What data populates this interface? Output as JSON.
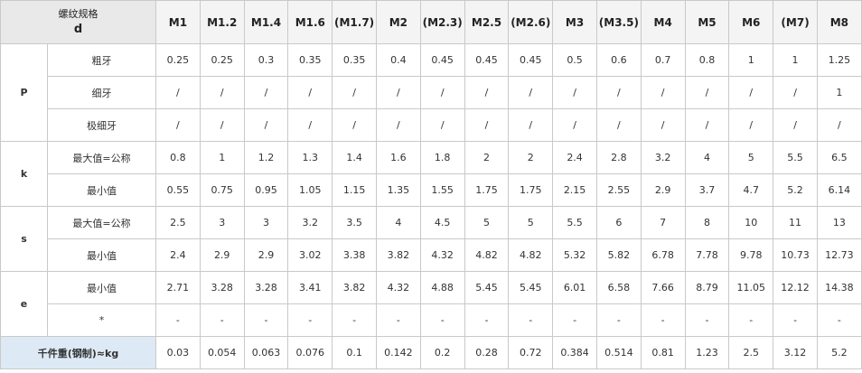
{
  "header": {
    "corner_line1": "螺纹规格",
    "corner_line2": "d",
    "sizes": [
      "M1",
      "M1.2",
      "M1.4",
      "M1.6",
      "(M1.7)",
      "M2",
      "(M2.3)",
      "M2.5",
      "(M2.6)",
      "M3",
      "(M3.5)",
      "M4",
      "M5",
      "M6",
      "(M7)",
      "M8"
    ]
  },
  "groups": {
    "P": {
      "label": "P",
      "rows": [
        {
          "label": "粗牙",
          "values": [
            "0.25",
            "0.25",
            "0.3",
            "0.35",
            "0.35",
            "0.4",
            "0.45",
            "0.45",
            "0.45",
            "0.5",
            "0.6",
            "0.7",
            "0.8",
            "1",
            "1",
            "1.25"
          ]
        },
        {
          "label": "细牙",
          "values": [
            "/",
            "/",
            "/",
            "/",
            "/",
            "/",
            "/",
            "/",
            "/",
            "/",
            "/",
            "/",
            "/",
            "/",
            "/",
            "1"
          ]
        },
        {
          "label": "极细牙",
          "values": [
            "/",
            "/",
            "/",
            "/",
            "/",
            "/",
            "/",
            "/",
            "/",
            "/",
            "/",
            "/",
            "/",
            "/",
            "/",
            "/"
          ]
        }
      ]
    },
    "k": {
      "label": "k",
      "rows": [
        {
          "label": "最大值=公称",
          "values": [
            "0.8",
            "1",
            "1.2",
            "1.3",
            "1.4",
            "1.6",
            "1.8",
            "2",
            "2",
            "2.4",
            "2.8",
            "3.2",
            "4",
            "5",
            "5.5",
            "6.5"
          ]
        },
        {
          "label": "最小值",
          "values": [
            "0.55",
            "0.75",
            "0.95",
            "1.05",
            "1.15",
            "1.35",
            "1.55",
            "1.75",
            "1.75",
            "2.15",
            "2.55",
            "2.9",
            "3.7",
            "4.7",
            "5.2",
            "6.14"
          ]
        }
      ]
    },
    "s": {
      "label": "s",
      "rows": [
        {
          "label": "最大值=公称",
          "values": [
            "2.5",
            "3",
            "3",
            "3.2",
            "3.5",
            "4",
            "4.5",
            "5",
            "5",
            "5.5",
            "6",
            "7",
            "8",
            "10",
            "11",
            "13"
          ]
        },
        {
          "label": "最小值",
          "values": [
            "2.4",
            "2.9",
            "2.9",
            "3.02",
            "3.38",
            "3.82",
            "4.32",
            "4.82",
            "4.82",
            "5.32",
            "5.82",
            "6.78",
            "7.78",
            "9.78",
            "10.73",
            "12.73"
          ]
        }
      ]
    },
    "e": {
      "label": "e",
      "rows": [
        {
          "label": "最小值",
          "values": [
            "2.71",
            "3.28",
            "3.28",
            "3.41",
            "3.82",
            "4.32",
            "4.88",
            "5.45",
            "5.45",
            "6.01",
            "6.58",
            "7.66",
            "8.79",
            "11.05",
            "12.12",
            "14.38"
          ]
        },
        {
          "label": "*",
          "values": [
            "-",
            "-",
            "-",
            "-",
            "-",
            "-",
            "-",
            "-",
            "-",
            "-",
            "-",
            "-",
            "-",
            "-",
            "-",
            "-"
          ]
        }
      ]
    }
  },
  "weight": {
    "label": "千件重(钢制)≈kg",
    "values": [
      "0.03",
      "0.054",
      "0.063",
      "0.076",
      "0.1",
      "0.142",
      "0.2",
      "0.28",
      "0.72",
      "0.384",
      "0.514",
      "0.81",
      "1.23",
      "2.5",
      "3.12",
      "5.2"
    ]
  }
}
